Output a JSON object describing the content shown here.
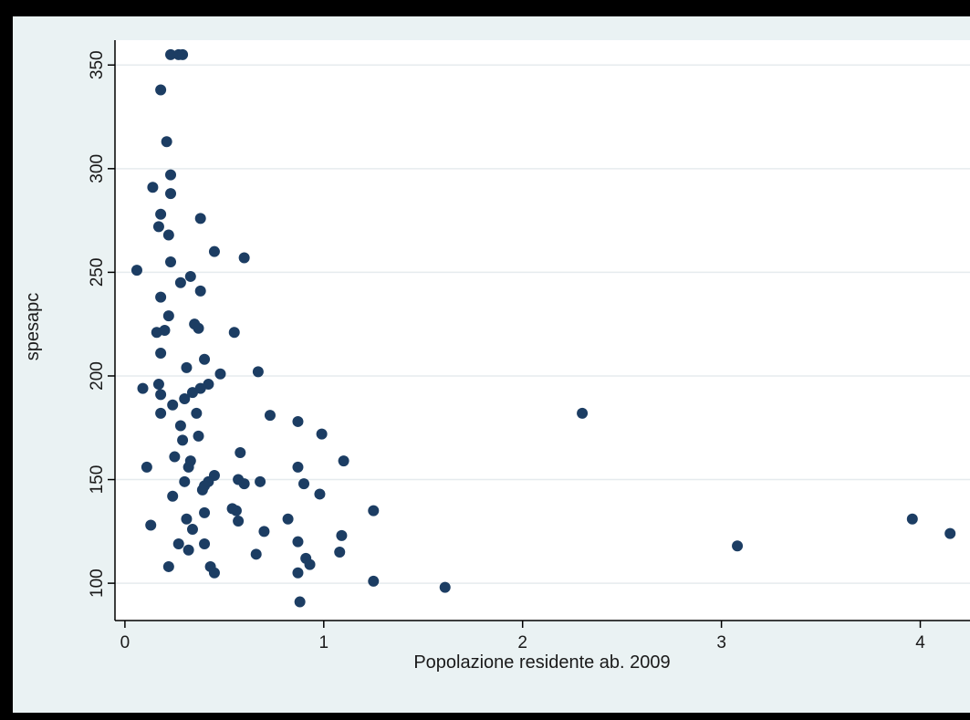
{
  "chart_data": {
    "type": "scatter",
    "title": "",
    "xlabel": "Popolazione residente ab. 2009",
    "ylabel": "spesapc",
    "xlim": [
      -0.05,
      4.25
    ],
    "ylim": [
      82,
      362
    ],
    "xticks": [
      0,
      1,
      2,
      3,
      4
    ],
    "yticks": [
      100,
      150,
      200,
      250,
      300,
      350
    ],
    "grid": "horizontal",
    "colors": {
      "point": "#1c3d63",
      "background": "#eaf2f3",
      "plot": "#ffffff",
      "grid": "#e6ebee",
      "frame": "#000000"
    },
    "series": [
      {
        "x": [
          0.23,
          0.27,
          0.29,
          0.18,
          0.21,
          0.23,
          0.14,
          0.23,
          0.18,
          0.17,
          0.22,
          0.38,
          0.45,
          0.23,
          0.6,
          0.06,
          0.33,
          0.28,
          0.18,
          0.38,
          0.22,
          0.35,
          0.37,
          0.2,
          0.16,
          0.55,
          0.18,
          0.4,
          0.31,
          0.48,
          0.67,
          0.42,
          0.38,
          0.17,
          0.18,
          0.09,
          0.3,
          0.34,
          0.24,
          0.36,
          0.18,
          0.73,
          0.28,
          0.87,
          0.37,
          0.99,
          0.29,
          0.25,
          0.33,
          0.58,
          0.32,
          1.1,
          0.11,
          0.87,
          0.45,
          0.3,
          0.4,
          0.42,
          0.57,
          0.68,
          0.39,
          0.6,
          0.24,
          0.9,
          0.98,
          0.56,
          0.54,
          1.25,
          0.4,
          0.82,
          0.31,
          0.13,
          0.57,
          0.34,
          0.7,
          1.09,
          0.87,
          0.27,
          0.4,
          0.32,
          0.66,
          1.08,
          0.91,
          0.93,
          0.22,
          0.43,
          0.45,
          0.87,
          1.25,
          1.61,
          0.88,
          2.3,
          3.08,
          3.96,
          4.15
        ],
        "y": [
          355,
          355,
          355,
          338,
          313,
          297,
          291,
          288,
          278,
          272,
          268,
          276,
          260,
          255,
          257,
          251,
          248,
          245,
          238,
          241,
          229,
          225,
          223,
          222,
          221,
          221,
          211,
          208,
          204,
          201,
          202,
          196,
          194,
          196,
          191,
          194,
          189,
          192,
          186,
          182,
          182,
          181,
          176,
          178,
          171,
          172,
          169,
          161,
          159,
          163,
          156,
          159,
          156,
          156,
          152,
          149,
          147,
          149,
          150,
          149,
          145,
          148,
          142,
          148,
          143,
          135,
          136,
          135,
          134,
          131,
          131,
          128,
          130,
          126,
          125,
          123,
          120,
          119,
          119,
          116,
          114,
          115,
          112,
          109,
          108,
          108,
          105,
          105,
          101,
          98,
          91,
          182,
          118,
          131,
          124
        ]
      }
    ]
  }
}
